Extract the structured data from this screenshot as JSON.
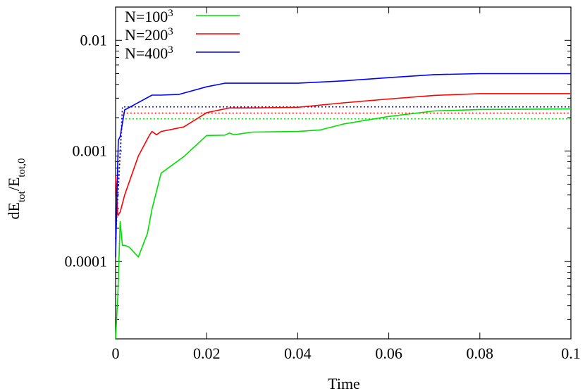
{
  "chart_data": {
    "type": "line",
    "xlabel": "Time",
    "ylabel": {
      "base": "dE",
      "sub1": "tot",
      "mid": "/E",
      "sub2": "tot,0"
    },
    "xlim": [
      0,
      0.1
    ],
    "ylim": [
      2e-05,
      0.02
    ],
    "yscale": "log",
    "xticks": [
      {
        "v": 0,
        "label": "0"
      },
      {
        "v": 0.02,
        "label": "0.02"
      },
      {
        "v": 0.04,
        "label": "0.04"
      },
      {
        "v": 0.06,
        "label": "0.06"
      },
      {
        "v": 0.08,
        "label": "0.08"
      },
      {
        "v": 0.1,
        "label": "0.1"
      }
    ],
    "yticks": [
      {
        "v": 0.0001,
        "label": "0.0001"
      },
      {
        "v": 0.001,
        "label": "0.001"
      },
      {
        "v": 0.01,
        "label": "0.01"
      }
    ],
    "grid": false,
    "legend_position": "top-left",
    "series": [
      {
        "name": "N=100",
        "name_sup": "3",
        "color": "#00e000",
        "x": [
          0,
          0.0005,
          0.001,
          0.0015,
          0.002,
          0.003,
          0.005,
          0.007,
          0.008,
          0.01,
          0.015,
          0.02,
          0.024,
          0.025,
          0.026,
          0.03,
          0.04,
          0.045,
          0.05,
          0.06,
          0.07,
          0.08,
          0.1
        ],
        "y": [
          2e-05,
          5e-05,
          0.00023,
          0.00014,
          0.00014,
          0.000135,
          0.00011,
          0.00018,
          0.0003,
          0.00063,
          0.00089,
          0.00138,
          0.00139,
          0.00145,
          0.0014,
          0.00148,
          0.0015,
          0.00155,
          0.00175,
          0.00205,
          0.0023,
          0.00237,
          0.0024
        ],
        "dashed_level": 0.00195
      },
      {
        "name": "N=200",
        "name_sup": "3",
        "color": "#ff0000",
        "x": [
          0,
          0.0005,
          0.001,
          0.002,
          0.005,
          0.0075,
          0.008,
          0.009,
          0.01,
          0.015,
          0.02,
          0.025,
          0.03,
          0.04,
          0.05,
          0.06,
          0.07,
          0.08,
          0.1
        ],
        "y": [
          0.0006,
          0.00026,
          0.00028,
          0.0004,
          0.0009,
          0.0014,
          0.0015,
          0.0014,
          0.0015,
          0.00165,
          0.00222,
          0.00245,
          0.00245,
          0.00248,
          0.00272,
          0.00295,
          0.00318,
          0.0033,
          0.0033
        ],
        "dashed_level": 0.0022
      },
      {
        "name": "N=400",
        "name_sup": "3",
        "color": "#0000ff",
        "x": [
          0,
          0.0003,
          0.0006,
          0.001,
          0.002,
          0.004,
          0.008,
          0.01,
          0.014,
          0.02,
          0.024,
          0.03,
          0.04,
          0.05,
          0.06,
          0.07,
          0.08,
          0.1
        ],
        "y": [
          0.00011,
          0.0004,
          0.00125,
          0.00135,
          0.00235,
          0.0026,
          0.0032,
          0.0032,
          0.00325,
          0.0038,
          0.0041,
          0.0041,
          0.0041,
          0.0043,
          0.0046,
          0.0049,
          0.005,
          0.005
        ],
        "dashed_level": 0.0025
      }
    ]
  }
}
